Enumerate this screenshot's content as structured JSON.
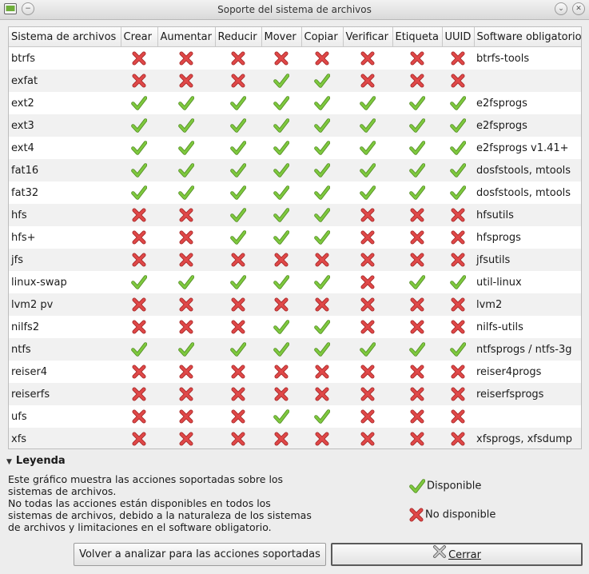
{
  "window": {
    "title": "Soporte del sistema de archivos"
  },
  "columns": [
    "Sistema de archivos",
    "Crear",
    "Aumentar",
    "Reducir",
    "Mover",
    "Copiar",
    "Verificar",
    "Etiqueta",
    "UUID",
    "Software obligatorio"
  ],
  "rows": [
    {
      "name": "btrfs",
      "marks": [
        0,
        0,
        0,
        0,
        0,
        0,
        0,
        0
      ],
      "software": "btrfs-tools"
    },
    {
      "name": "exfat",
      "marks": [
        0,
        0,
        0,
        1,
        1,
        0,
        0,
        0
      ],
      "software": ""
    },
    {
      "name": "ext2",
      "marks": [
        1,
        1,
        1,
        1,
        1,
        1,
        1,
        1
      ],
      "software": "e2fsprogs"
    },
    {
      "name": "ext3",
      "marks": [
        1,
        1,
        1,
        1,
        1,
        1,
        1,
        1
      ],
      "software": "e2fsprogs"
    },
    {
      "name": "ext4",
      "marks": [
        1,
        1,
        1,
        1,
        1,
        1,
        1,
        1
      ],
      "software": "e2fsprogs v1.41+"
    },
    {
      "name": "fat16",
      "marks": [
        1,
        1,
        1,
        1,
        1,
        1,
        1,
        1
      ],
      "software": "dosfstools, mtools"
    },
    {
      "name": "fat32",
      "marks": [
        1,
        1,
        1,
        1,
        1,
        1,
        1,
        1
      ],
      "software": "dosfstools, mtools"
    },
    {
      "name": "hfs",
      "marks": [
        0,
        0,
        1,
        1,
        1,
        0,
        0,
        0
      ],
      "software": "hfsutils"
    },
    {
      "name": "hfs+",
      "marks": [
        0,
        0,
        1,
        1,
        1,
        0,
        0,
        0
      ],
      "software": "hfsprogs"
    },
    {
      "name": "jfs",
      "marks": [
        0,
        0,
        0,
        0,
        0,
        0,
        0,
        0
      ],
      "software": "jfsutils"
    },
    {
      "name": "linux-swap",
      "marks": [
        1,
        1,
        1,
        1,
        1,
        0,
        1,
        1
      ],
      "software": "util-linux"
    },
    {
      "name": "lvm2 pv",
      "marks": [
        0,
        0,
        0,
        0,
        0,
        0,
        0,
        0
      ],
      "software": "lvm2"
    },
    {
      "name": "nilfs2",
      "marks": [
        0,
        0,
        0,
        1,
        1,
        0,
        0,
        0
      ],
      "software": "nilfs-utils"
    },
    {
      "name": "ntfs",
      "marks": [
        1,
        1,
        1,
        1,
        1,
        1,
        1,
        1
      ],
      "software": "ntfsprogs / ntfs-3g"
    },
    {
      "name": "reiser4",
      "marks": [
        0,
        0,
        0,
        0,
        0,
        0,
        0,
        0
      ],
      "software": "reiser4progs"
    },
    {
      "name": "reiserfs",
      "marks": [
        0,
        0,
        0,
        0,
        0,
        0,
        0,
        0
      ],
      "software": "reiserfsprogs"
    },
    {
      "name": "ufs",
      "marks": [
        0,
        0,
        0,
        1,
        1,
        0,
        0,
        0
      ],
      "software": ""
    },
    {
      "name": "xfs",
      "marks": [
        0,
        0,
        0,
        0,
        0,
        0,
        0,
        0
      ],
      "software": "xfsprogs, xfsdump"
    }
  ],
  "legend": {
    "title": "Leyenda",
    "line1": "Este gráfico muestra las acciones soportadas sobre los",
    "line2": "sistemas de archivos.",
    "line3": "No todas las acciones están disponibles en todos los",
    "line4": "sistemas de archivos, debido a la naturaleza de los sistemas",
    "line5": "de archivos y limitaciones en el software obligatorio.",
    "available": "Disponible",
    "unavailable": "No disponible"
  },
  "buttons": {
    "rescan": "Volver a analizar para las acciones soportadas",
    "close": "Cerrar"
  },
  "colors": {
    "check": "#7ec83e",
    "cross": "#e04848"
  },
  "icons": {
    "available": "check-icon",
    "unavailable": "cross-icon"
  }
}
